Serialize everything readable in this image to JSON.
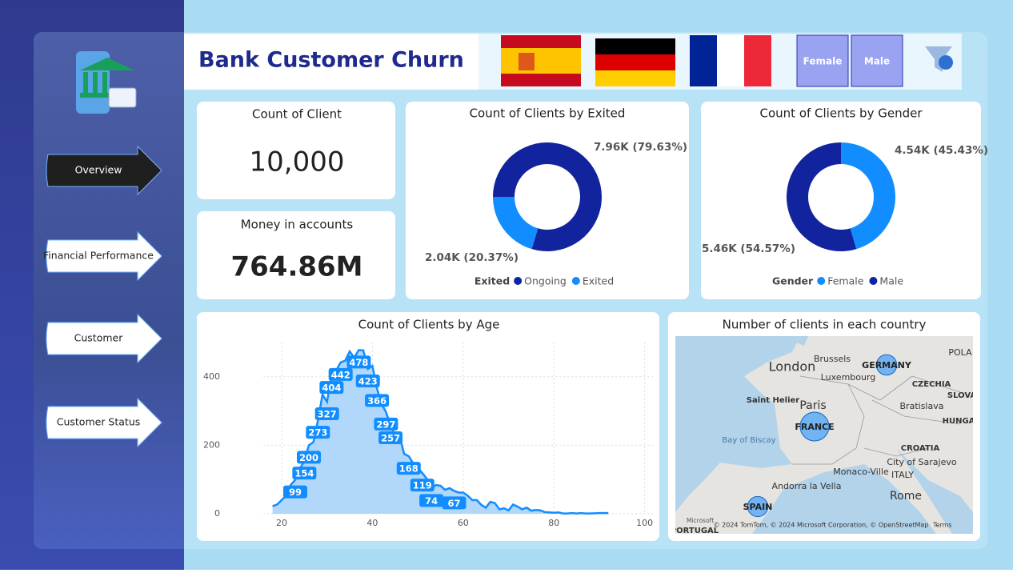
{
  "header": {
    "title": "Bank Customer Churn",
    "filters": [
      "Female",
      "Male"
    ]
  },
  "nav": [
    "Overview",
    "Financial Performance",
    "Customer",
    "Customer Status"
  ],
  "cards": [
    {
      "title": "Count of Client",
      "value": "10,000"
    },
    {
      "title": "Money in accounts",
      "value": "764.86M"
    }
  ],
  "chart_data": [
    {
      "type": "donut",
      "title": "Count of Clients by Exited",
      "legend_title": "Exited",
      "categories": [
        "Ongoing",
        "Exited"
      ],
      "values": [
        7963,
        2037
      ],
      "colors": [
        "#12239e",
        "#118dff"
      ],
      "value_labels": [
        "7.96K (79.63%)",
        "2.04K (20.37%)"
      ]
    },
    {
      "type": "donut",
      "title": "Count of Clients by Gender",
      "legend_title": "Gender",
      "categories": [
        "Female",
        "Male"
      ],
      "values": [
        4543,
        5457
      ],
      "colors": [
        "#118dff",
        "#12239e"
      ],
      "value_labels": [
        "4.54K (45.43%)",
        "5.46K (54.57%)"
      ]
    },
    {
      "type": "area",
      "title": "Count of Clients by Age",
      "color": "#118dff",
      "x": [
        18,
        19,
        20,
        21,
        22,
        23,
        24,
        25,
        26,
        27,
        28,
        29,
        30,
        31,
        32,
        33,
        34,
        35,
        36,
        37,
        38,
        39,
        40,
        41,
        42,
        43,
        44,
        45,
        46,
        47,
        48,
        49,
        50,
        51,
        52,
        53,
        54,
        55,
        56,
        57,
        58,
        59,
        60,
        61,
        62,
        63,
        64,
        65,
        66,
        67,
        68,
        69,
        70,
        71,
        72,
        73,
        74,
        75,
        76,
        77,
        78,
        79,
        80,
        81,
        82,
        83,
        84,
        85,
        86,
        87,
        88,
        90,
        92
      ],
      "values": [
        22,
        27,
        40,
        53,
        84,
        99,
        132,
        154,
        200,
        209,
        273,
        348,
        327,
        404,
        418,
        442,
        447,
        474,
        456,
        478,
        477,
        423,
        432,
        366,
        321,
        297,
        257,
        229,
        226,
        175,
        168,
        147,
        134,
        119,
        102,
        74,
        84,
        82,
        70,
        75,
        67,
        62,
        62,
        53,
        40,
        40,
        26,
        18,
        35,
        31,
        13,
        16,
        10,
        27,
        21,
        13,
        18,
        9,
        11,
        10,
        5,
        4,
        3,
        4,
        1,
        1,
        2,
        1,
        2,
        1,
        1,
        2,
        2
      ],
      "value_labels": [
        null,
        null,
        null,
        null,
        null,
        "99",
        null,
        "154",
        "200",
        null,
        "273",
        null,
        "327",
        "404",
        null,
        "442",
        null,
        null,
        null,
        "478",
        null,
        "423",
        null,
        "366",
        null,
        "297",
        "257",
        null,
        null,
        null,
        "168",
        null,
        null,
        "119",
        null,
        "74",
        null,
        null,
        null,
        null,
        "67",
        null,
        null,
        null,
        null,
        null,
        null,
        null,
        null,
        null,
        null,
        null,
        null,
        null,
        null,
        null,
        null,
        null,
        null,
        null,
        null,
        null,
        null,
        null,
        null,
        null,
        null,
        null,
        null,
        null,
        null,
        null,
        null
      ],
      "xlim": [
        16,
        102
      ],
      "ylim": [
        0,
        500
      ],
      "xticks": [
        20,
        40,
        60,
        80,
        100
      ],
      "yticks": [
        0,
        200,
        400
      ],
      "grid": true
    },
    {
      "type": "map",
      "title": "Number of clients in each country",
      "color": "#118dff",
      "categories": [
        "FRANCE",
        "GERMANY",
        "SPAIN"
      ],
      "values": [
        5014,
        2509,
        2477
      ],
      "place_labels": [
        "London",
        "Brussels",
        "Luxembourg",
        "Paris",
        "Saint Helier",
        "Bay of Biscay",
        "POLA",
        "CZECHIA",
        "SLOVA",
        "Bratislava",
        "HUNGA",
        "CROATIA",
        "City of Sarajevo",
        "Monaco-Ville",
        "Andorra la Vella",
        "ITALY",
        "Rome",
        "PORTUGAL"
      ],
      "attribution": "© 2024 TomTom, © 2024 Microsoft Corporation, © OpenStreetMap",
      "terms": "Terms",
      "logo": "Microsoft"
    }
  ]
}
